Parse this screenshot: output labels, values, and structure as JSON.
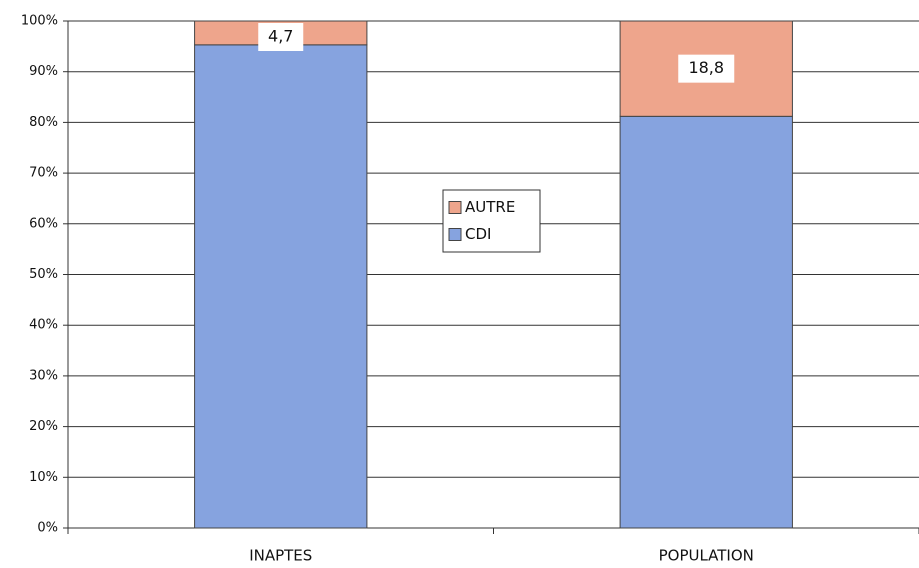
{
  "chart_data": {
    "type": "stacked_bar",
    "categories": [
      "INAPTES",
      "POPULATION"
    ],
    "series": [
      {
        "name": "CDI",
        "color": "#86a3df",
        "values": [
          95.3,
          81.2
        ]
      },
      {
        "name": "AUTRE",
        "color": "#eea58c",
        "values": [
          4.7,
          18.8
        ],
        "value_labels": [
          "4,7",
          "18,8"
        ]
      }
    ],
    "ylim": [
      0,
      100
    ],
    "yticks": [
      {
        "value": 0,
        "label": "0%"
      },
      {
        "value": 10,
        "label": "10%"
      },
      {
        "value": 20,
        "label": "20%"
      },
      {
        "value": 30,
        "label": "30%"
      },
      {
        "value": 40,
        "label": "40%"
      },
      {
        "value": 50,
        "label": "50%"
      },
      {
        "value": 60,
        "label": "60%"
      },
      {
        "value": 70,
        "label": "70%"
      },
      {
        "value": 80,
        "label": "80%"
      },
      {
        "value": 90,
        "label": "90%"
      },
      {
        "value": 100,
        "label": "100%"
      }
    ],
    "grid": true,
    "legend": "center"
  }
}
